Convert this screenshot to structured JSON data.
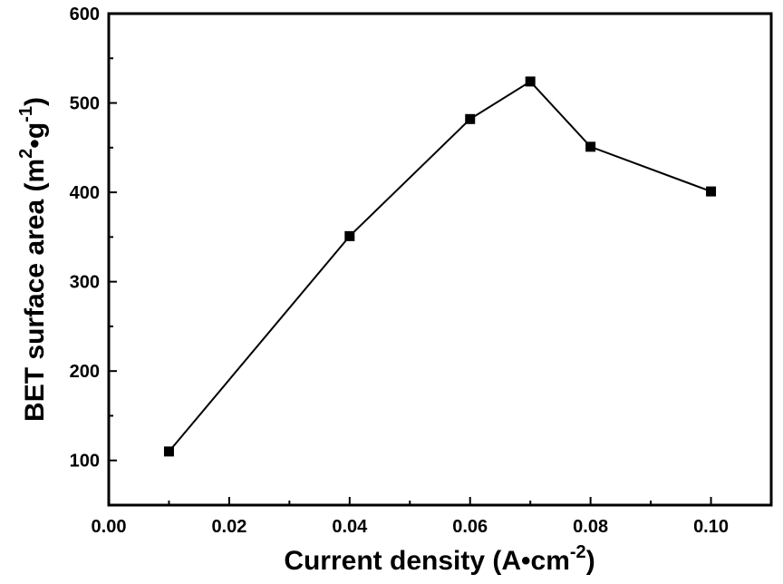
{
  "chart_data": {
    "type": "line",
    "title": "",
    "xlabel": {
      "main": "Current density (A",
      "middle": "•",
      "tail": "cm",
      "superscript": "-2",
      "close": ")"
    },
    "ylabel": {
      "main": "BET surface area (m",
      "superscript_1": "2",
      "dot": "•",
      "unit_2": "g",
      "superscript_2": "-1",
      "close": ")"
    },
    "xlim": [
      0.0,
      0.11
    ],
    "ylim": [
      50,
      600
    ],
    "x_ticks": [
      "0.00",
      "0.02",
      "0.04",
      "0.06",
      "0.08",
      "0.10"
    ],
    "x_tick_values": [
      0.0,
      0.02,
      0.04,
      0.06,
      0.08,
      0.1
    ],
    "y_ticks": [
      "100",
      "200",
      "300",
      "400",
      "500",
      "600"
    ],
    "y_tick_values": [
      100,
      200,
      300,
      400,
      500,
      600
    ],
    "grid": false,
    "series": [
      {
        "x": [
          0.01,
          0.04,
          0.06,
          0.07,
          0.08,
          0.1
        ],
        "y": [
          110,
          351,
          482,
          524,
          451,
          401
        ],
        "marker": "square",
        "color": "#000000"
      }
    ]
  }
}
